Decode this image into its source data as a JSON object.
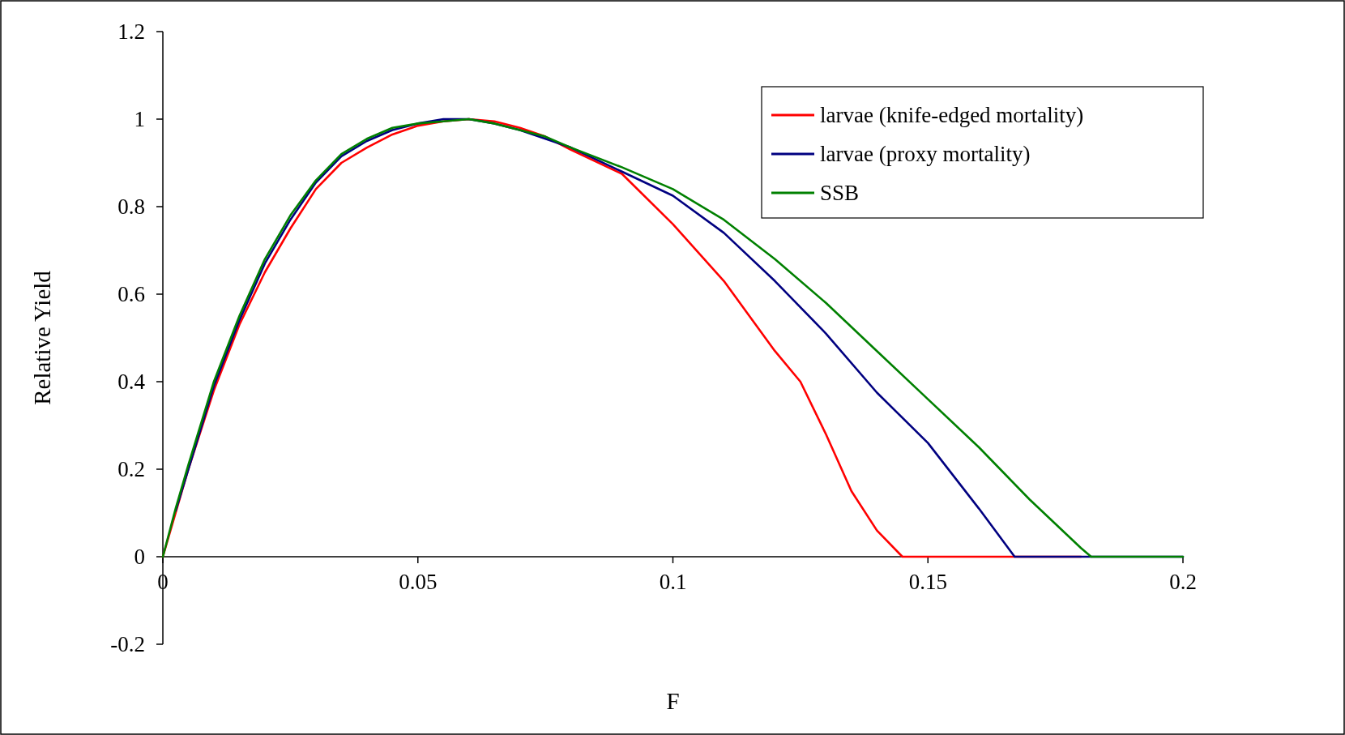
{
  "chart_data": {
    "type": "line",
    "xlabel": "F",
    "ylabel": "Relative Yield",
    "xlim": [
      0,
      0.2
    ],
    "xticks": [
      0,
      0.05,
      0.1,
      0.15,
      0.2
    ],
    "ylim": [
      -0.2,
      1.2
    ],
    "yticks": [
      -0.2,
      0,
      0.2,
      0.4,
      0.6,
      0.8,
      1,
      1.2
    ],
    "legend": "top right",
    "marker": "none",
    "line_style": "solid",
    "series": [
      {
        "name": "larvae (knife-edged mortality)",
        "color": "#ff0000",
        "x": [
          0,
          0.0025,
          0.005,
          0.01,
          0.015,
          0.02,
          0.025,
          0.03,
          0.035,
          0.04,
          0.045,
          0.05,
          0.055,
          0.06,
          0.065,
          0.07,
          0.075,
          0.08,
          0.09,
          0.1,
          0.11,
          0.12,
          0.125,
          0.13,
          0.135,
          0.14,
          0.145,
          0.15,
          0.16,
          0.17,
          0.18
        ],
        "values": [
          0,
          0.1,
          0.2,
          0.38,
          0.53,
          0.65,
          0.75,
          0.84,
          0.9,
          0.935,
          0.965,
          0.985,
          0.995,
          1,
          0.995,
          0.98,
          0.96,
          0.93,
          0.875,
          0.76,
          0.63,
          0.47,
          0.4,
          0.28,
          0.15,
          0.06,
          0,
          0,
          0,
          0,
          0
        ]
      },
      {
        "name": "larvae (proxy mortality)",
        "color": "#000080",
        "x": [
          0.0025,
          0.005,
          0.01,
          0.015,
          0.02,
          0.025,
          0.03,
          0.035,
          0.04,
          0.045,
          0.05,
          0.055,
          0.06,
          0.065,
          0.07,
          0.075,
          0.08,
          0.09,
          0.1,
          0.11,
          0.12,
          0.13,
          0.14,
          0.15,
          0.16,
          0.167,
          0.17,
          0.18,
          0.19,
          0.2
        ],
        "values": [
          0.105,
          0.2,
          0.39,
          0.54,
          0.67,
          0.77,
          0.855,
          0.915,
          0.95,
          0.975,
          0.99,
          1,
          1,
          0.99,
          0.975,
          0.955,
          0.935,
          0.88,
          0.825,
          0.74,
          0.63,
          0.51,
          0.375,
          0.26,
          0.11,
          0,
          0,
          0,
          0,
          0
        ]
      },
      {
        "name": "SSB",
        "color": "#008000",
        "x": [
          0,
          0.0025,
          0.005,
          0.01,
          0.015,
          0.02,
          0.025,
          0.03,
          0.035,
          0.04,
          0.045,
          0.05,
          0.055,
          0.06,
          0.065,
          0.07,
          0.075,
          0.08,
          0.09,
          0.1,
          0.11,
          0.12,
          0.13,
          0.14,
          0.15,
          0.16,
          0.17,
          0.18,
          0.182,
          0.19,
          0.2
        ],
        "values": [
          0,
          0.11,
          0.21,
          0.4,
          0.55,
          0.68,
          0.78,
          0.86,
          0.92,
          0.955,
          0.98,
          0.99,
          0.995,
          1,
          0.99,
          0.975,
          0.96,
          0.935,
          0.89,
          0.84,
          0.77,
          0.68,
          0.58,
          0.47,
          0.36,
          0.25,
          0.13,
          0.02,
          0,
          0,
          0
        ]
      }
    ]
  }
}
